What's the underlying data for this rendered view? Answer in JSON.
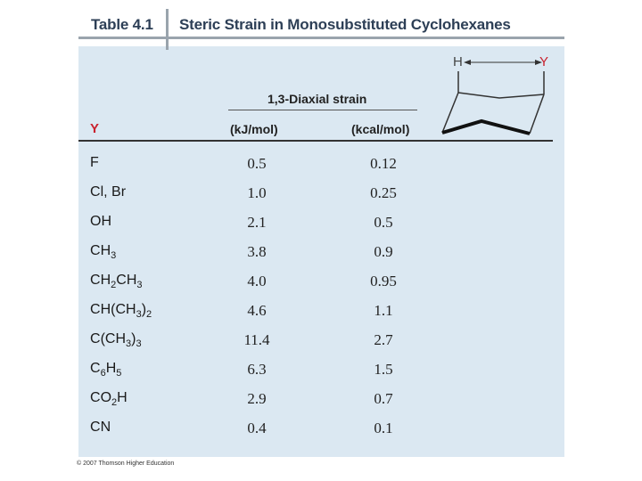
{
  "title": {
    "table_number": "Table 4.1",
    "caption": "Steric Strain in Monosubstituted Cyclohexanes"
  },
  "headers": {
    "group": "1,3-Diaxial strain",
    "substituent": "Y",
    "kj": "(kJ/mol)",
    "kcal": "(kcal/mol)"
  },
  "diagram": {
    "label_h": "H",
    "label_y": "Y"
  },
  "rows": [
    {
      "y": "F",
      "kj": "0.5",
      "kcal": "0.12"
    },
    {
      "y": "Cl, Br",
      "kj": "1.0",
      "kcal": "0.25"
    },
    {
      "y": "OH",
      "kj": "2.1",
      "kcal": "0.5"
    },
    {
      "y": "CH3",
      "kj": "3.8",
      "kcal": "0.9"
    },
    {
      "y": "CH2CH3",
      "kj": "4.0",
      "kcal": "0.95"
    },
    {
      "y": "CH(CH3)2",
      "kj": "4.6",
      "kcal": "1.1"
    },
    {
      "y": "C(CH3)3",
      "kj": "11.4",
      "kcal": "2.7"
    },
    {
      "y": "C6H5",
      "kj": "6.3",
      "kcal": "1.5"
    },
    {
      "y": "CO2H",
      "kj": "2.9",
      "kcal": "0.7"
    },
    {
      "y": "CN",
      "kj": "0.4",
      "kcal": "0.1"
    }
  ],
  "footer": {
    "copyright": "© 2007 Thomson Higher Education"
  },
  "colors": {
    "panel": "#dbe8f2",
    "title_text": "#2d3f56",
    "accent_red": "#c9212d"
  }
}
